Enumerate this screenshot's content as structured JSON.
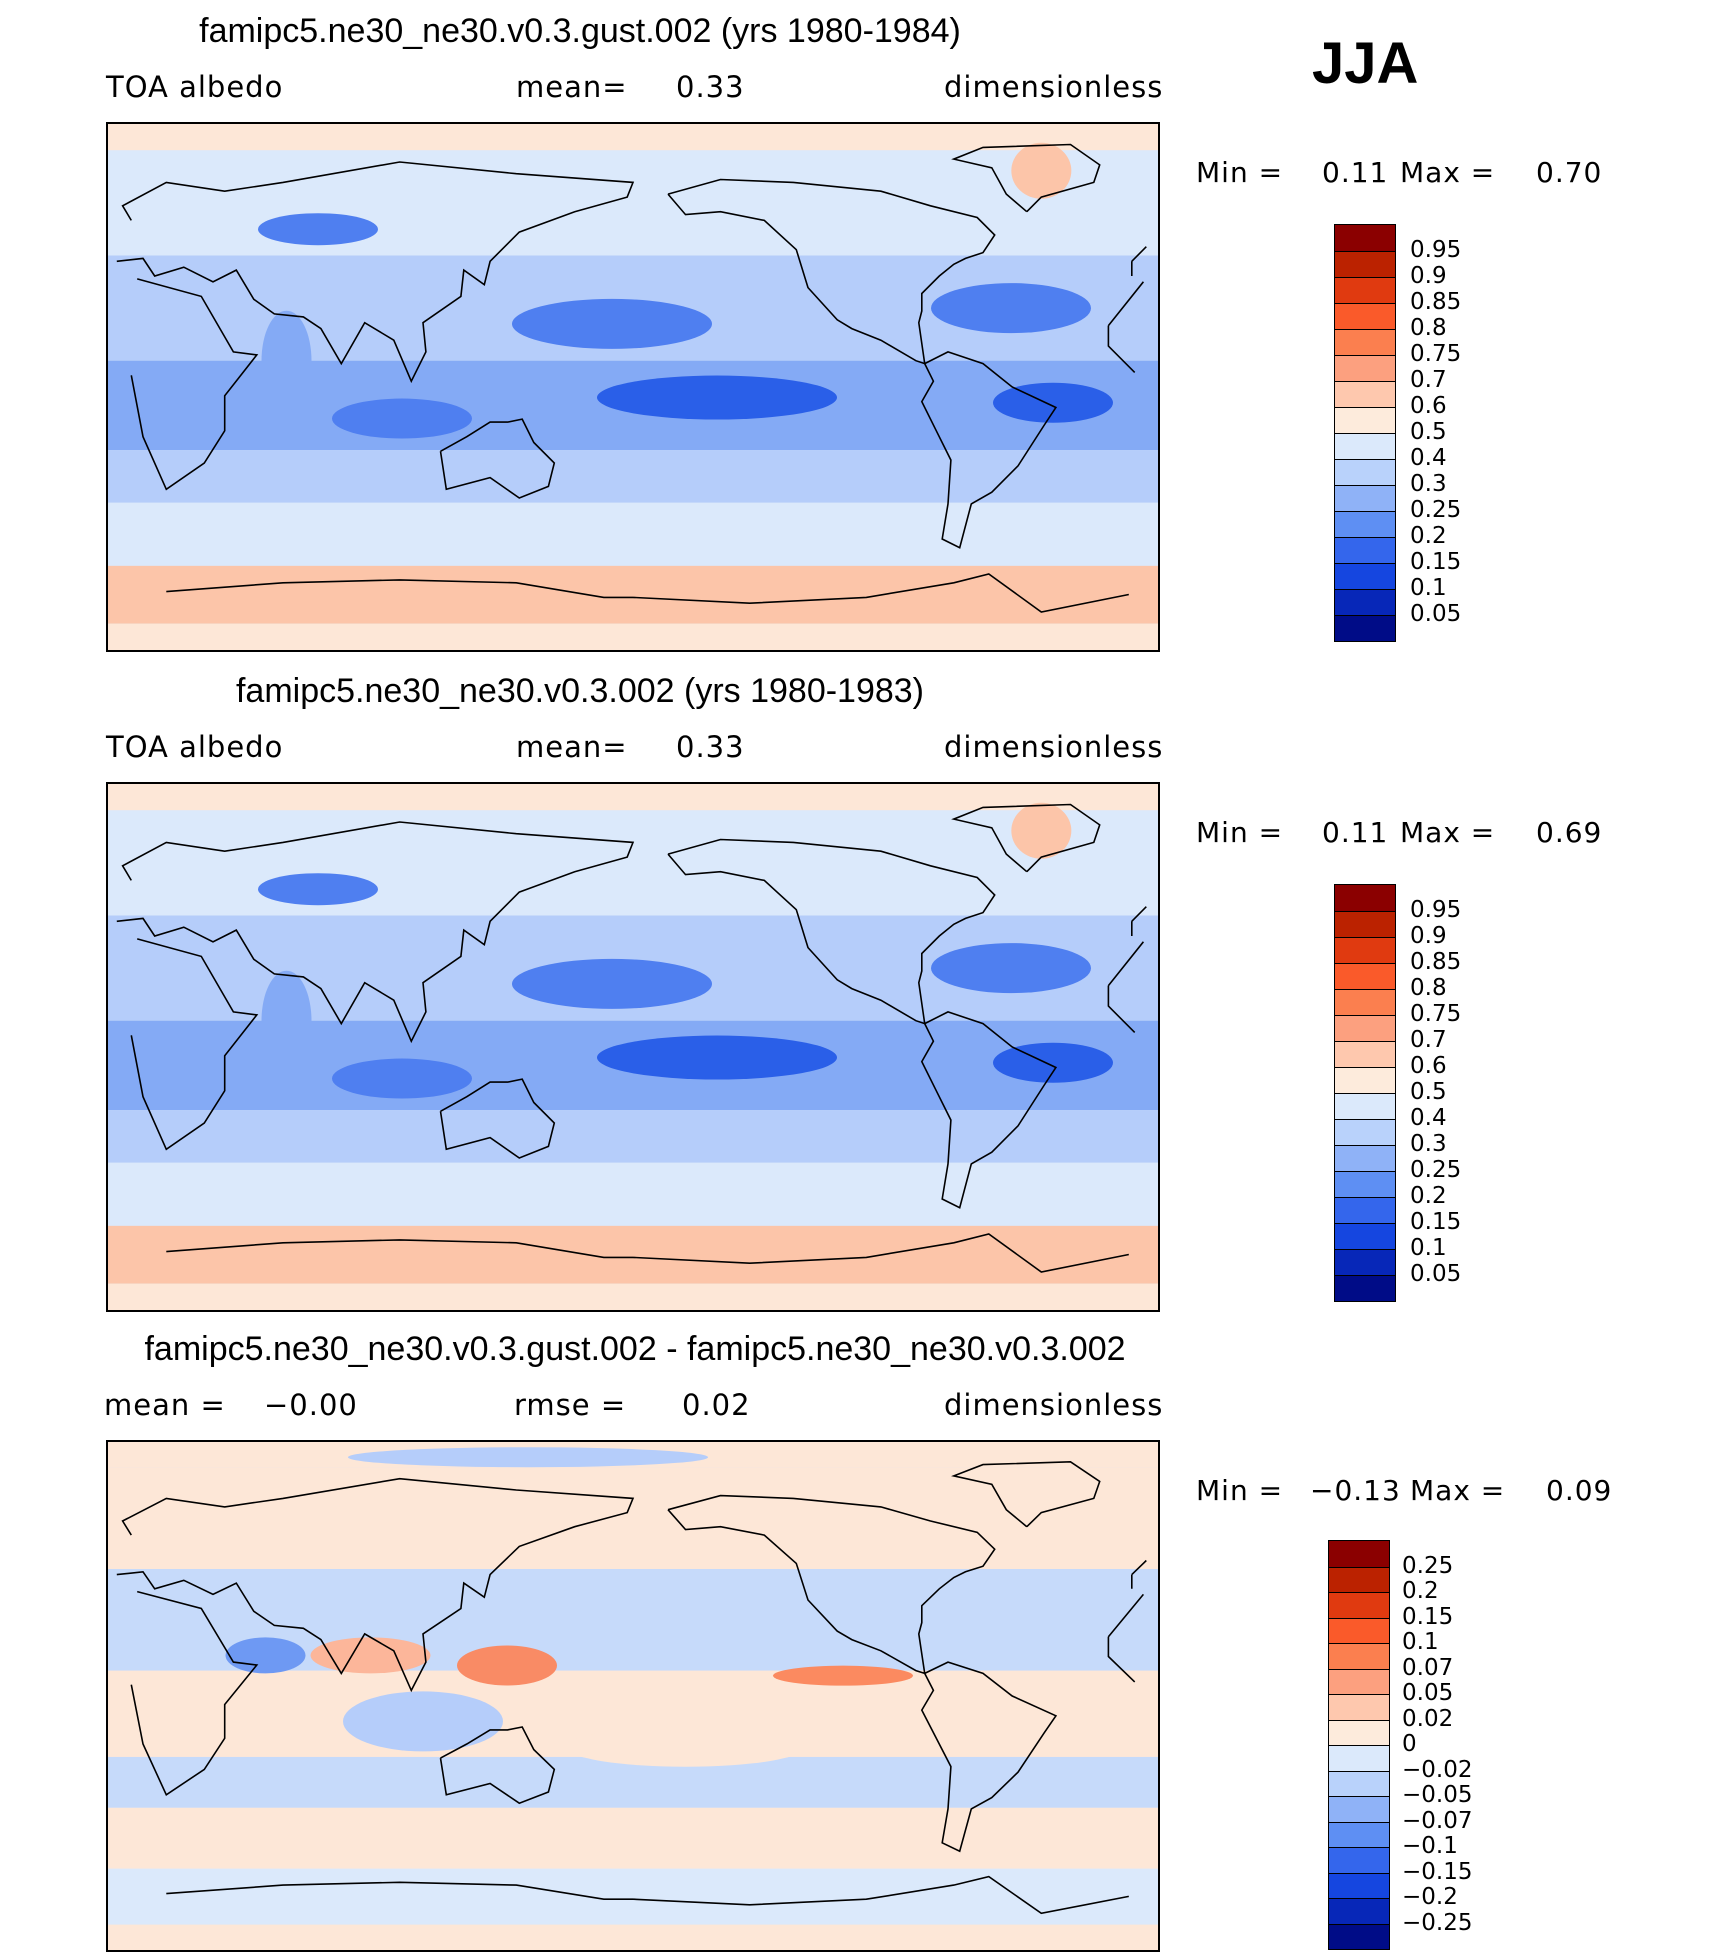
{
  "season": "JJA",
  "chart_data": [
    {
      "type": "heatmap",
      "title": "famipc5.ne30_ne30.v0.3.gust.002 (yrs 1980-1984)",
      "variable": "TOA albedo",
      "mean_label": "mean=",
      "mean_value": "0.33",
      "units": "dimensionless",
      "min_label": "Min =",
      "min_value": "0.11",
      "max_label": "Max =",
      "max_value": "0.70",
      "colorbar_levels": [
        "0.95",
        "0.9",
        "0.85",
        "0.8",
        "0.75",
        "0.7",
        "0.6",
        "0.5",
        "0.4",
        "0.3",
        "0.25",
        "0.2",
        "0.15",
        "0.1",
        "0.05"
      ],
      "colorbar_colors": [
        "#8b0000",
        "#bb2200",
        "#e03a10",
        "#fa5a2a",
        "#fb7f4f",
        "#fca07f",
        "#fec8ae",
        "#fdebdc",
        "#dbe9fb",
        "#b9d2fb",
        "#8fb2f7",
        "#5e8ff3",
        "#3466ec",
        "#1546e0",
        "#0727b8",
        "#000c87"
      ],
      "band_fills": [
        "#fde7d7",
        "#fcc5a9",
        "#dbe9fb",
        "#b5cdfa",
        "#84aaf5",
        "#4f7ff0",
        "#2a5fe8"
      ],
      "land_tint": "#c7dbfb"
    },
    {
      "type": "heatmap",
      "title": "famipc5.ne30_ne30.v0.3.002 (yrs 1980-1983)",
      "variable": "TOA albedo",
      "mean_label": "mean=",
      "mean_value": "0.33",
      "units": "dimensionless",
      "min_label": "Min =",
      "min_value": "0.11",
      "max_label": "Max =",
      "max_value": "0.69",
      "colorbar_levels": [
        "0.95",
        "0.9",
        "0.85",
        "0.8",
        "0.75",
        "0.7",
        "0.6",
        "0.5",
        "0.4",
        "0.3",
        "0.25",
        "0.2",
        "0.15",
        "0.1",
        "0.05"
      ],
      "colorbar_colors": [
        "#8b0000",
        "#bb2200",
        "#e03a10",
        "#fa5a2a",
        "#fb7f4f",
        "#fca07f",
        "#fec8ae",
        "#fdebdc",
        "#dbe9fb",
        "#b9d2fb",
        "#8fb2f7",
        "#5e8ff3",
        "#3466ec",
        "#1546e0",
        "#0727b8",
        "#000c87"
      ],
      "band_fills": [
        "#fde7d7",
        "#fcc5a9",
        "#dbe9fb",
        "#b5cdfa",
        "#84aaf5",
        "#4f7ff0",
        "#2a5fe8"
      ],
      "land_tint": "#c7dbfb"
    },
    {
      "type": "heatmap",
      "title": "famipc5.ne30_ne30.v0.3.gust.002 - famipc5.ne30_ne30.v0.3.002",
      "mean_label": "mean =",
      "mean_value": "−0.00",
      "rmse_label": "rmse =",
      "rmse_value": "0.02",
      "units": "dimensionless",
      "min_label": "Min =",
      "min_value": "−0.13",
      "max_label": "Max =",
      "max_value": "0.09",
      "colorbar_levels": [
        "0.25",
        "0.2",
        "0.15",
        "0.1",
        "0.07",
        "0.05",
        "0.02",
        "0",
        "−0.02",
        "−0.05",
        "−0.07",
        "−0.1",
        "−0.15",
        "−0.2",
        "−0.25"
      ],
      "colorbar_colors": [
        "#8b0000",
        "#bb2200",
        "#e03a10",
        "#fa5a2a",
        "#fb7f4f",
        "#fca07f",
        "#fec8ae",
        "#fdebdc",
        "#dbe9fb",
        "#b9d2fb",
        "#8fb2f7",
        "#5e8ff3",
        "#3466ec",
        "#1546e0",
        "#0727b8",
        "#000c87"
      ],
      "band_fills": [
        "#fde7d7",
        "#dbe9fb",
        "#fde7d7",
        "#c6dafa",
        "#fde7d7",
        "#dbe9fb",
        "#fde7d7"
      ],
      "land_tint": "#c7dbfb"
    }
  ]
}
